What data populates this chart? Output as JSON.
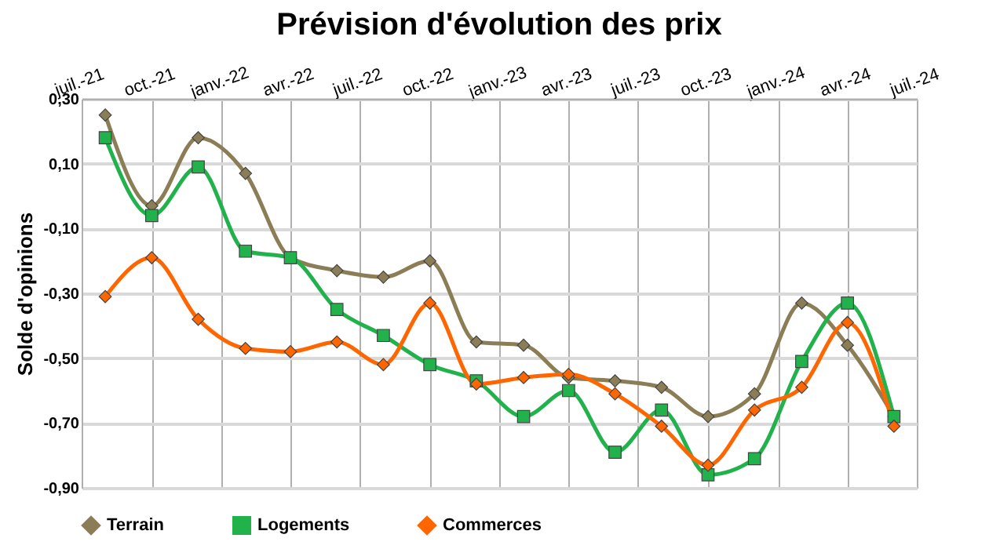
{
  "chart_data": {
    "type": "line",
    "title": "Prévision d'évolution des prix",
    "ylabel": "Solde d'opinions",
    "x": [
      "2021-08",
      "2021-10",
      "2021-12",
      "2022-02",
      "2022-04",
      "2022-06",
      "2022-08",
      "2022-10",
      "2022-12",
      "2023-02",
      "2023-04",
      "2023-06",
      "2023-08",
      "2023-10",
      "2023-12",
      "2024-02",
      "2024-04",
      "2024-06"
    ],
    "series": [
      {
        "name": "Terrain",
        "color": "#8b7d55",
        "marker": "diamond",
        "values": [
          0.25,
          -0.03,
          0.18,
          0.07,
          -0.19,
          -0.23,
          -0.25,
          -0.2,
          -0.45,
          -0.46,
          -0.56,
          -0.57,
          -0.59,
          -0.68,
          -0.61,
          -0.33,
          -0.46,
          -0.68
        ]
      },
      {
        "name": "Logements",
        "color": "#22b24c",
        "marker": "square",
        "values": [
          0.18,
          -0.06,
          0.09,
          -0.17,
          -0.19,
          -0.35,
          -0.43,
          -0.52,
          -0.57,
          -0.68,
          -0.6,
          -0.79,
          -0.66,
          -0.86,
          -0.81,
          -0.51,
          -0.33,
          -0.68
        ]
      },
      {
        "name": "Commerces",
        "color": "#ff6600",
        "marker": "diamond",
        "values": [
          -0.31,
          -0.19,
          -0.38,
          -0.47,
          -0.48,
          -0.45,
          -0.52,
          -0.33,
          -0.58,
          -0.56,
          -0.55,
          -0.61,
          -0.71,
          -0.83,
          -0.66,
          -0.59,
          -0.39,
          -0.71
        ]
      }
    ],
    "xlim": [
      "2021-07",
      "2024-07"
    ],
    "xticks": [
      {
        "value": "2021-07",
        "label": "juil.-21"
      },
      {
        "value": "2021-10",
        "label": "oct.-21"
      },
      {
        "value": "2022-01",
        "label": "janv.-22"
      },
      {
        "value": "2022-04",
        "label": "avr.-22"
      },
      {
        "value": "2022-07",
        "label": "juil.-22"
      },
      {
        "value": "2022-10",
        "label": "oct.-22"
      },
      {
        "value": "2023-01",
        "label": "janv.-23"
      },
      {
        "value": "2023-04",
        "label": "avr.-23"
      },
      {
        "value": "2023-07",
        "label": "juil.-23"
      },
      {
        "value": "2023-10",
        "label": "oct.-23"
      },
      {
        "value": "2024-01",
        "label": "janv.-24"
      },
      {
        "value": "2024-04",
        "label": "avr.-24"
      },
      {
        "value": "2024-07",
        "label": "juil.-24"
      }
    ],
    "ylim": [
      -0.9,
      0.3
    ],
    "yticks": [
      {
        "value": 0.3,
        "label": "0,30"
      },
      {
        "value": 0.1,
        "label": "0,10"
      },
      {
        "value": -0.1,
        "label": "-0,10"
      },
      {
        "value": -0.3,
        "label": "-0,30"
      },
      {
        "value": -0.5,
        "label": "-0,50"
      },
      {
        "value": -0.7,
        "label": "-0,70"
      },
      {
        "value": -0.9,
        "label": "-0,90"
      }
    ],
    "grid": true,
    "legend": "bottom",
    "line_style": "solid"
  }
}
